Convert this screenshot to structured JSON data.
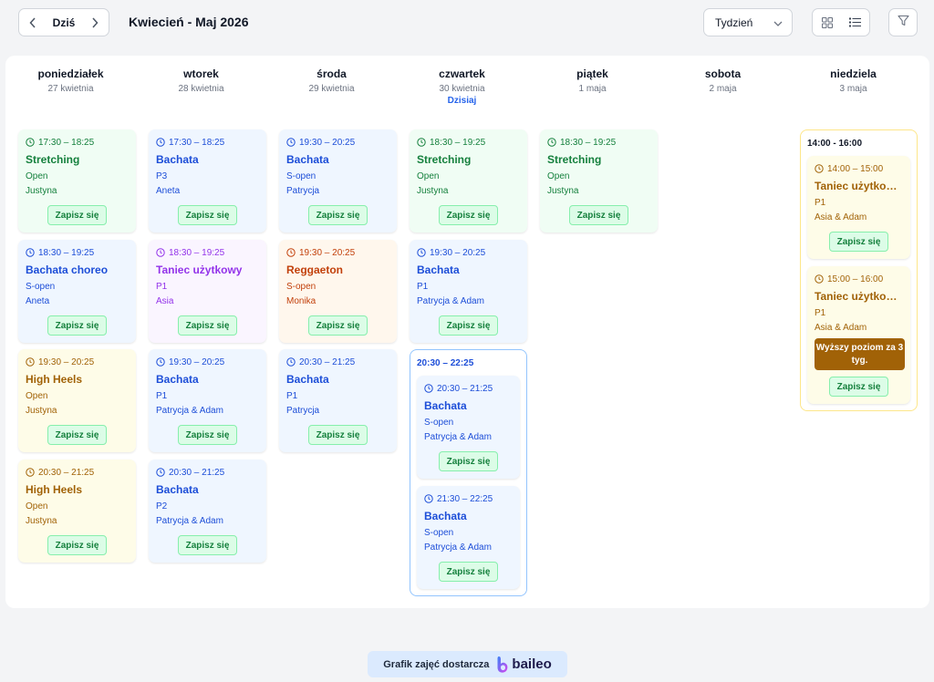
{
  "toolbar": {
    "today_label": "Dziś",
    "range_title": "Kwiecień - Maj 2026",
    "view_label": "Tydzień"
  },
  "days": [
    {
      "name": "poniedziałek",
      "date": "27 kwietnia"
    },
    {
      "name": "wtorek",
      "date": "28 kwietnia"
    },
    {
      "name": "środa",
      "date": "29 kwietnia"
    },
    {
      "name": "czwartek",
      "date": "30 kwietnia",
      "today_label": "Dzisiaj"
    },
    {
      "name": "piątek",
      "date": "1 maja"
    },
    {
      "name": "sobota",
      "date": "2 maja"
    },
    {
      "name": "niedziela",
      "date": "3 maja"
    }
  ],
  "events": {
    "mon": [
      {
        "time": "17:30 – 18:25",
        "title": "Stretching",
        "level": "Open",
        "trainer": "Justyna",
        "button": "Zapisz się",
        "color": "#15803d"
      },
      {
        "time": "18:30 – 19:25",
        "title": "Bachata choreo",
        "level": "S-open",
        "trainer": "Aneta",
        "button": "Zapisz się",
        "color": "#1d4ed8"
      },
      {
        "time": "19:30 – 20:25",
        "title": "High Heels",
        "level": "Open",
        "trainer": "Justyna",
        "button": "Zapisz się",
        "color": "#a16207"
      },
      {
        "time": "20:30 – 21:25",
        "title": "High Heels",
        "level": "Open",
        "trainer": "Justyna",
        "button": "Zapisz się",
        "color": "#a16207"
      }
    ],
    "tue": [
      {
        "time": "17:30 – 18:25",
        "title": "Bachata",
        "level": "P3",
        "trainer": "Aneta",
        "button": "Zapisz się",
        "color": "#1d4ed8"
      },
      {
        "time": "18:30 – 19:25",
        "title": "Taniec użytkowy",
        "level": "P1",
        "trainer": "Asia",
        "button": "Zapisz się",
        "color": "#9333ea"
      },
      {
        "time": "19:30 – 20:25",
        "title": "Bachata",
        "level": "P1",
        "trainer": "Patrycja & Adam",
        "button": "Zapisz się",
        "color": "#1d4ed8"
      },
      {
        "time": "20:30 – 21:25",
        "title": "Bachata",
        "level": "P2",
        "trainer": "Patrycja & Adam",
        "button": "Zapisz się",
        "color": "#1d4ed8"
      }
    ],
    "wed": [
      {
        "time": "19:30 – 20:25",
        "title": "Bachata",
        "level": "S-open",
        "trainer": "Patrycja",
        "button": "Zapisz się",
        "color": "#1d4ed8"
      },
      {
        "time": "19:30 – 20:25",
        "title": "Reggaeton",
        "level": "S-open",
        "trainer": "Monika",
        "button": "Zapisz się",
        "color": "#c2410c"
      },
      {
        "time": "20:30 – 21:25",
        "title": "Bachata",
        "level": "P1",
        "trainer": "Patrycja",
        "button": "Zapisz się",
        "color": "#1d4ed8"
      }
    ],
    "thu": [
      {
        "time": "18:30 – 19:25",
        "title": "Stretching",
        "level": "Open",
        "trainer": "Justyna",
        "button": "Zapisz się",
        "color": "#15803d"
      },
      {
        "time": "19:30 – 20:25",
        "title": "Bachata",
        "level": "P1",
        "trainer": "Patrycja & Adam",
        "button": "Zapisz się",
        "color": "#1d4ed8"
      }
    ],
    "thu_group": {
      "title": "20:30 – 22:25",
      "items": [
        {
          "time": "20:30 – 21:25",
          "title": "Bachata",
          "level": "S-open",
          "trainer": "Patrycja & Adam",
          "button": "Zapisz się",
          "color": "#1d4ed8"
        },
        {
          "time": "21:30 – 22:25",
          "title": "Bachata",
          "level": "S-open",
          "trainer": "Patrycja & Adam",
          "button": "Zapisz się",
          "color": "#1d4ed8"
        }
      ]
    },
    "fri": [
      {
        "time": "18:30 – 19:25",
        "title": "Stretching",
        "level": "Open",
        "trainer": "Justyna",
        "button": "Zapisz się",
        "color": "#15803d"
      }
    ],
    "sun_group": {
      "title": "14:00 - 16:00",
      "items": [
        {
          "time": "14:00 – 15:00",
          "title": "Taniec użytkow...",
          "level": "P1",
          "trainer": "Asia & Adam",
          "button": "Zapisz się",
          "color": "#a16207"
        },
        {
          "time": "15:00 – 16:00",
          "title": "Taniec użytkow...",
          "level": "P1",
          "trainer": "Asia & Adam",
          "button": "Zapisz się",
          "color": "#a16207",
          "badge": "Wyższy poziom za 3 tyg."
        }
      ]
    }
  },
  "footer": {
    "text": "Grafik zajęć dostarcza",
    "brand": "baileo"
  },
  "colors": {
    "accent": "#2563eb",
    "signup_green": "#15803d",
    "badge_brown": "#a16207"
  }
}
